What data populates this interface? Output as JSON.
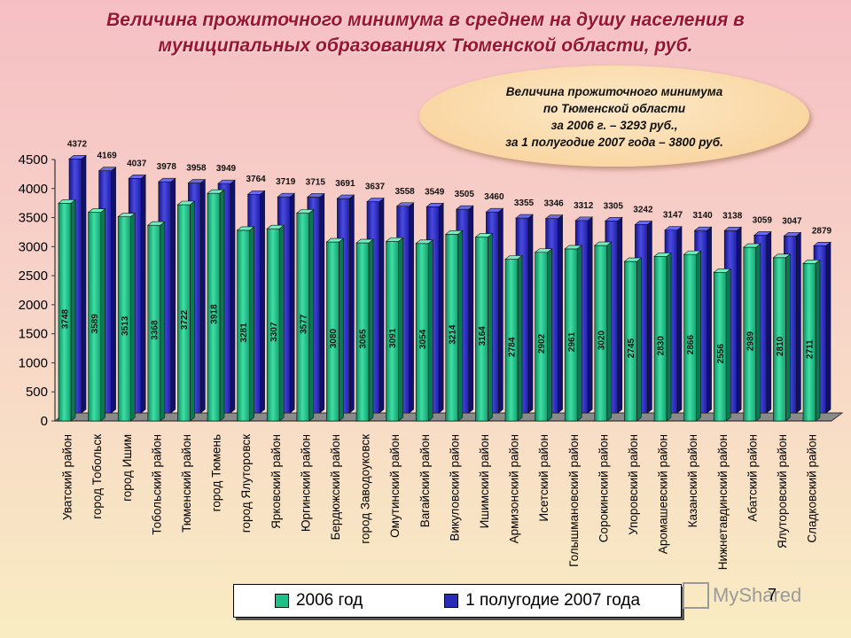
{
  "title": {
    "line1": "Величина прожиточного минимума в среднем на душу населения в",
    "line2": "муниципальных образованиях Тюменской области, руб."
  },
  "info": {
    "line1": "Величина прожиточного минимума",
    "line2": "по Тюменской области",
    "line3": "за 2006 г. – 3293 руб.,",
    "line4": "за 1 полугодие 2007 года – 3800 руб."
  },
  "colors": {
    "series_2006": "#1fbf8a",
    "series_2007": "#2a2ab8",
    "floor": "#8a8a8a"
  },
  "chart_data": {
    "type": "bar",
    "title": "Величина прожиточного минимума в среднем на душу населения в муниципальных образованиях Тюменской области, руб.",
    "xlabel": "",
    "ylabel": "",
    "ylim": [
      0,
      4500
    ],
    "yticks": [
      0,
      500,
      1000,
      1500,
      2000,
      2500,
      3000,
      3500,
      4000,
      4500
    ],
    "categories": [
      "Уватский район",
      "город Тобольск",
      "город Ишим",
      "Тобольский район",
      "Тюменский район",
      "город Тюмень",
      "город Ялуторовск",
      "Ярковский район",
      "Юргинский район",
      "Бердюжский район",
      "город Заводоуковск",
      "Омутинский район",
      "Вагайский район",
      "Викуловский район",
      "Ишимский район",
      "Армизонский район",
      "Исетский район",
      "Голышмановский район",
      "Сорокинский район",
      "Упоровский район",
      "Аромашевский район",
      "Казанский район",
      "Нижнетавдинский район",
      "Абатский район",
      "Ялуторовский район",
      "Сладковский район"
    ],
    "series": [
      {
        "name": "2006 год",
        "values": [
          3748,
          3589,
          3513,
          3368,
          3722,
          3918,
          3281,
          3307,
          3577,
          3080,
          3065,
          3091,
          3054,
          3214,
          3164,
          2784,
          2902,
          2961,
          3020,
          2745,
          2830,
          2866,
          2556,
          2989,
          2810,
          2711
        ]
      },
      {
        "name": "1 полугодие 2007 года",
        "values": [
          4372,
          4169,
          4037,
          3978,
          3958,
          3949,
          3764,
          3719,
          3715,
          3691,
          3637,
          3558,
          3549,
          3505,
          3460,
          3355,
          3346,
          3312,
          3305,
          3242,
          3147,
          3140,
          3138,
          3059,
          3047,
          2879
        ]
      }
    ],
    "legend_position": "bottom"
  },
  "watermark": "MyShared",
  "slide_number": "7"
}
